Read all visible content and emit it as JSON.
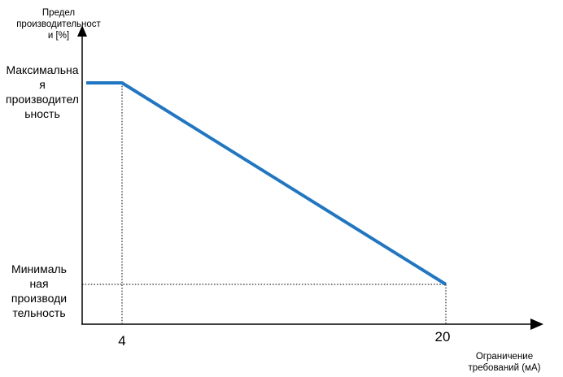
{
  "chart_data": {
    "type": "line",
    "title": "",
    "ylabel_lines": [
      "Предел",
      "производительност",
      "и [%]"
    ],
    "xlabel_lines": [
      "Ограничение",
      "требований (мА)"
    ],
    "y_tick_labels": [
      {
        "key": "max",
        "lines": [
          "Максимальна",
          "я",
          "производител",
          "ьность"
        ]
      },
      {
        "key": "min",
        "lines": [
          "Минималь",
          "ная",
          "производи",
          "тельность"
        ]
      }
    ],
    "x_tick_labels": [
      "4",
      "20"
    ],
    "series": [
      {
        "color": "#1f77c4",
        "points": [
          {
            "x": 0,
            "y": "max"
          },
          {
            "x": 4,
            "y": "max"
          },
          {
            "x": 20,
            "y": "min"
          }
        ]
      }
    ],
    "reference_lines": "dotted guides from both curve breakpoints to the axes",
    "grid": false
  }
}
